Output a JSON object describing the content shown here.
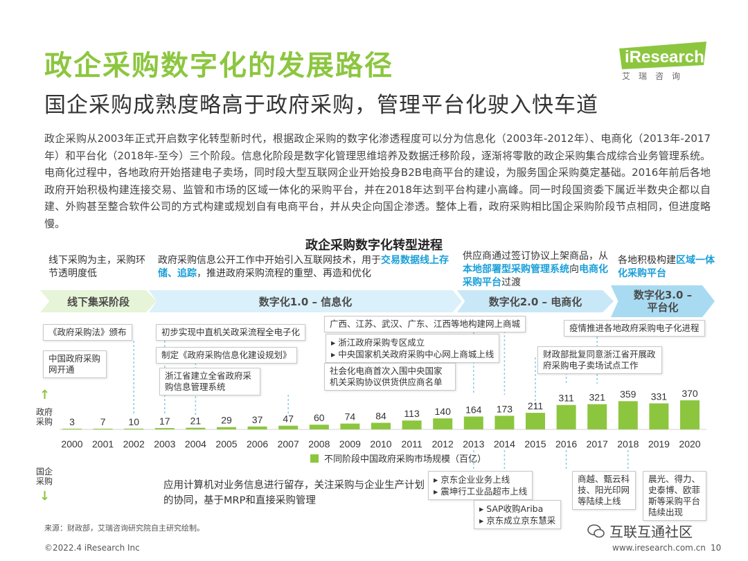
{
  "header": {
    "title": "政企采购数字化的发展路径",
    "subtitle": "国企采购成熟度略高于政府采购，管理平台化驶入快车道",
    "logo_text": "iResearch",
    "logo_sub": "艾瑞咨询"
  },
  "intro": "政企采购从2003年正式开启数字化转型新时代，根据政企采购的数字化渗透程度可以分为信息化（2003年-2012年）、电商化（2013年-2017年）和平台化（2018年-至今）三个阶段。信息化阶段是数字化管理思维培养及数据迁移阶段，逐渐将零散的政企采购集合成综合业务管理系统。电商化过程中，各地政府开始搭建电子卖场，同时段大型互联网企业开始投身B2B电商平台的建设，为服务国企采购奠定基础。2016年前后各地政府开始积极构建连接交易、监管和市场的区域一体化的采购平台，并在2018年达到平台构建小高峰。同一时段国资委下属近半数央企都以自建、外购甚至整合软件公司的方式构建或规划自有电商平台，并从央企向国企渗透。整体上看，政府采购相比国企采购阶段节点相同，但进度略慢。",
  "section_title": "政企采购数字化转型进程",
  "phase_desc": {
    "offline": "线下采购为主，采购环节透明度低",
    "info_pre": "政府采购信息公开工作中开始引入互联网技术，用于",
    "info_hl": "交易数据线上存储、追踪",
    "info_post": "，推进政府采购流程的重塑、再造和优化",
    "ecom_pre": "供应商通过签订协议上架商品，从",
    "ecom_hl1": "本地部署型采购管理系统",
    "ecom_mid": "向",
    "ecom_hl2": "电商化采购平台",
    "ecom_post": "过渡",
    "plat_pre": "各地积极构建",
    "plat_hl": "区域一体化采购平台"
  },
  "phases": {
    "offline": "线下集采阶段",
    "info": "数字化1.0 – 信息化",
    "ecom": "数字化2.0 – 电商化",
    "plat_line1": "数字化3.0 –",
    "plat_line2": "平台化"
  },
  "gov_events": {
    "e1": "《政府采购法》颁布",
    "e2": "中国政府采购网开通",
    "e3": "初步实现中直机关政采流程全电子化",
    "e4": "制定《政府采购信息化建设规划》",
    "e5": "浙江省建立全省政府采购信息管理系统",
    "e6": "广西、江苏、武汉、广东、江西等地构建网上商城",
    "e7a": "浙江政府采购专区成立",
    "e7b": "中央国家机关政府采购中心网上商城上线",
    "e8": "社会化电商首次入围中央国家机关采购协议供货供应商名单",
    "e9": "财政部批复同意浙江省开展政府采购电子卖场试点工作",
    "e10": "疫情推进各地政府采购电子化进程"
  },
  "soe_events": {
    "s1": "应用计算机对业务信息进行留存，关注采购与企业生产计划的协同，基于MRP和直接采购管理",
    "s2a": "京东企业业务上线",
    "s2b": "震坤行工业品超市上线",
    "s3a": "SAP收购Ariba",
    "s3b": "京东成立京东慧采",
    "s4": "商越、甄云科技、阳光印网等陆续上线",
    "s5": "晨光、得力、史泰博、欧菲斯等采购平台陆续出现"
  },
  "axis": {
    "gov_label": "政府采购",
    "soe_label": "国企采购"
  },
  "chart_data": {
    "type": "bar",
    "categories": [
      "2000",
      "2001",
      "2002",
      "2003",
      "2004",
      "2005",
      "2006",
      "2007",
      "2008",
      "2009",
      "2010",
      "2011",
      "2012",
      "2013",
      "2014",
      "2015",
      "2016",
      "2017",
      "2018",
      "2019",
      "2020"
    ],
    "series": [
      {
        "name": "不同阶段中国政府采购市场规模（百亿）",
        "values": [
          3,
          7,
          10,
          17,
          21,
          29,
          37,
          47,
          60,
          74,
          84,
          113,
          140,
          164,
          173,
          211,
          311,
          321,
          359,
          331,
          370
        ]
      }
    ],
    "title": "",
    "xlabel": "",
    "ylabel": "",
    "ylim": [
      0,
      370
    ],
    "colors": {
      "bar": "#8cc63f"
    }
  },
  "source": "来源：财政部，艾瑞咨询研究院自主研究绘制。",
  "footer": {
    "copyright": "©2022.4 iResearch Inc",
    "website": "www.iresearch.com.cn",
    "page": "10",
    "watermark": "互联互通社区"
  }
}
